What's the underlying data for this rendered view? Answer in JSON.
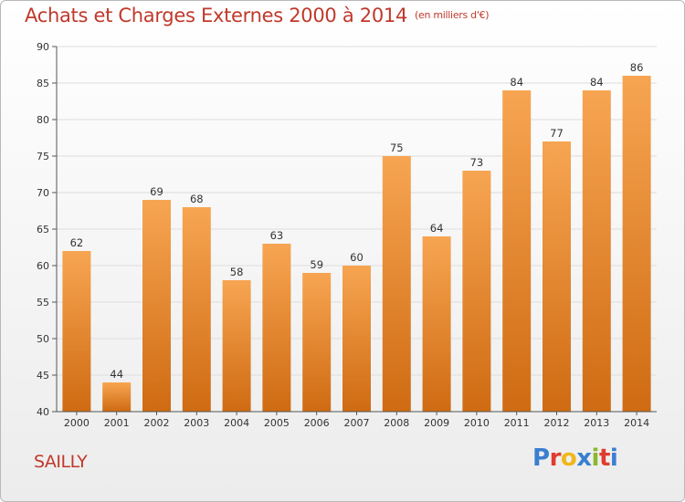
{
  "header": {
    "title": "Achats et Charges Externes 2000 à 2014",
    "unit": "(en milliers d'€)"
  },
  "footer": {
    "commune": "SAILLY",
    "logo": "Proxiti"
  },
  "colors": {
    "title": "#c0392b",
    "bar_top": "#f7a552",
    "bar_bottom": "#cf6b12",
    "grid": "#dddddd",
    "logo": [
      "#3a7fd0",
      "#e03b2f",
      "#f0b71a",
      "#3a7fd0",
      "#8ab82d",
      "#e03b2f",
      "#3a7fd0"
    ]
  },
  "chart_data": {
    "type": "bar",
    "categories": [
      "2000",
      "2001",
      "2002",
      "2003",
      "2004",
      "2005",
      "2006",
      "2007",
      "2008",
      "2009",
      "2010",
      "2011",
      "2012",
      "2013",
      "2014"
    ],
    "values": [
      62,
      44,
      69,
      68,
      58,
      63,
      59,
      60,
      75,
      64,
      73,
      84,
      77,
      84,
      86
    ],
    "title": "Achats et Charges Externes 2000 à 2014",
    "ylim": [
      40,
      90
    ],
    "yticks": [
      40,
      45,
      50,
      55,
      60,
      65,
      70,
      75,
      80,
      85,
      90
    ],
    "grid": true,
    "legend": "none"
  }
}
